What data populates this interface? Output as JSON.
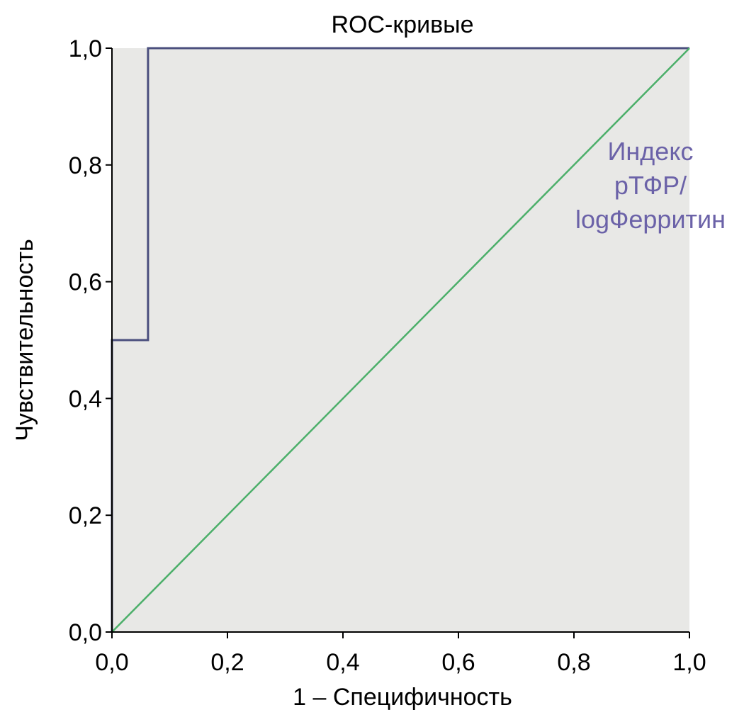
{
  "chart_data": {
    "type": "line",
    "title": "ROC-кривые",
    "xlabel": "1 – Специфичность",
    "ylabel": "Чувствительность",
    "xlim": [
      0.0,
      1.0
    ],
    "ylim": [
      0.0,
      1.0
    ],
    "xticks": [
      {
        "value": 0.0,
        "label": "0,0"
      },
      {
        "value": 0.2,
        "label": "0,2"
      },
      {
        "value": 0.4,
        "label": "0,4"
      },
      {
        "value": 0.6,
        "label": "0,6"
      },
      {
        "value": 0.8,
        "label": "0,8"
      },
      {
        "value": 1.0,
        "label": "1,0"
      }
    ],
    "yticks": [
      {
        "value": 0.0,
        "label": "0,0"
      },
      {
        "value": 0.2,
        "label": "0,2"
      },
      {
        "value": 0.4,
        "label": "0,4"
      },
      {
        "value": 0.6,
        "label": "0,6"
      },
      {
        "value": 0.8,
        "label": "0,8"
      },
      {
        "value": 1.0,
        "label": "1,0"
      }
    ],
    "grid": false,
    "plot_background": "#e8e8e6",
    "series": [
      {
        "name": "Индекс рТФР/logФерритин",
        "label_lines": [
          "Индекс",
          "рТФР/",
          "logФерритин"
        ],
        "color": "#4b4f7e",
        "label_color": "#6b62a8",
        "points": [
          {
            "x": 0.0,
            "y": 0.0
          },
          {
            "x": 0.0,
            "y": 0.5
          },
          {
            "x": 0.0625,
            "y": 0.5
          },
          {
            "x": 0.0625,
            "y": 1.0
          },
          {
            "x": 1.0,
            "y": 1.0
          }
        ]
      },
      {
        "name": "",
        "color": "#4caf6a",
        "points": [
          {
            "x": 0.0,
            "y": 0.0
          },
          {
            "x": 1.0,
            "y": 1.0
          }
        ]
      }
    ]
  }
}
